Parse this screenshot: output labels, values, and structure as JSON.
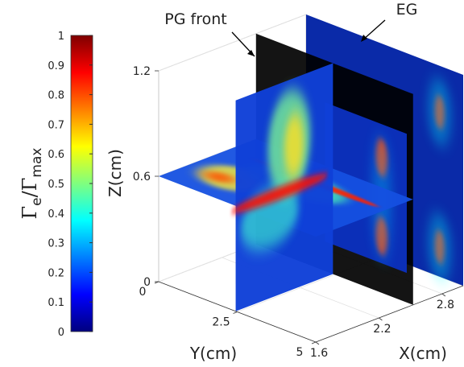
{
  "chart_data": {
    "type": "slice3d",
    "colorbar": {
      "label": {
        "main1": "Γ",
        "sub1": "e",
        "sep": "/",
        "main2": "Γ",
        "sub2": "max"
      },
      "clim": [
        0,
        1
      ],
      "ticks": [
        0,
        0.1,
        0.2,
        0.3,
        0.4,
        0.5,
        0.6,
        0.7,
        0.8,
        0.9,
        1
      ],
      "colormap": "jet"
    },
    "zlabel": "Z(cm)",
    "ylabel": "Y(cm)",
    "xlabel": "X(cm)",
    "zlim": [
      0,
      1.2
    ],
    "zticks": [
      0,
      0.6,
      1.2
    ],
    "ylim": [
      0,
      5
    ],
    "yticks": [
      0,
      2.5,
      5
    ],
    "xlim": [
      1.6,
      3
    ],
    "xticks": [
      1.6,
      2.2,
      2.8
    ],
    "annotations": [
      "PG front",
      "EG"
    ],
    "grid": true
  }
}
